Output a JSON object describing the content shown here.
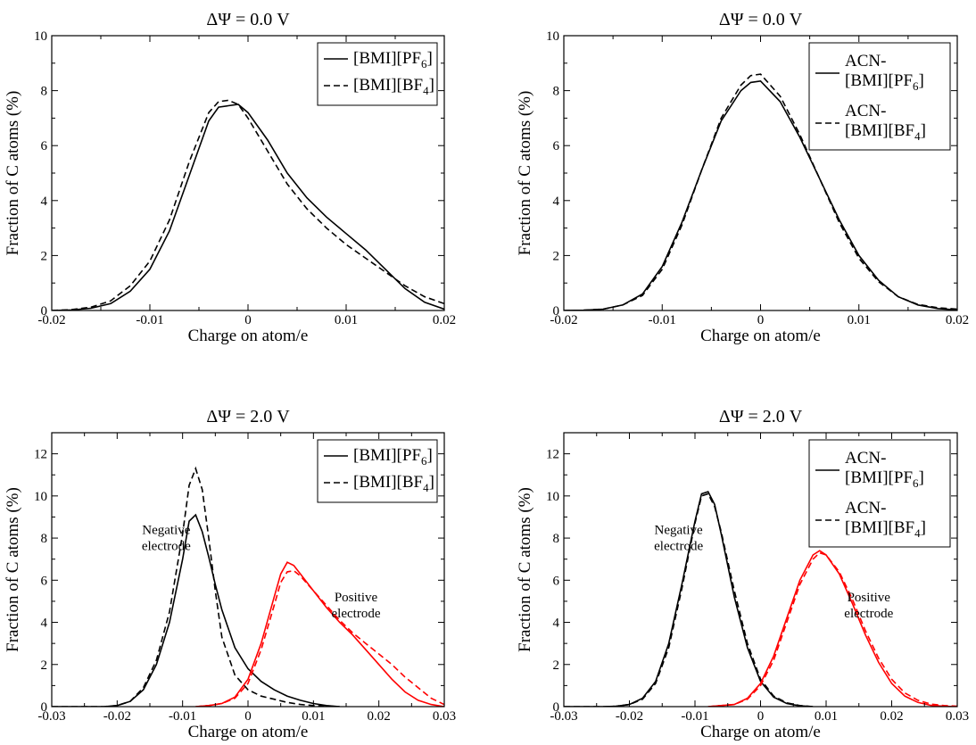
{
  "chart_data": [
    {
      "type": "line",
      "title": "ΔΨ = 0.0 V",
      "xlabel": "Charge on atom/e",
      "ylabel": "Fraction of C atoms (%)",
      "xlim": [
        -0.02,
        0.02
      ],
      "ylim": [
        0,
        10
      ],
      "xticks": [
        -0.02,
        -0.01,
        0,
        0.01,
        0.02
      ],
      "xtick_labels": [
        "-0.02",
        "-0.01",
        "0",
        "0.01",
        "0.02"
      ],
      "yticks": [
        0,
        2,
        4,
        6,
        8,
        10
      ],
      "ytick_labels": [
        "0",
        "2",
        "4",
        "6",
        "8",
        "10"
      ],
      "legend_position": "top-right",
      "series": [
        {
          "name": "[BMI][PF6]",
          "legend": [
            {
              "t": "[BMI][PF"
            },
            {
              "t": "6",
              "sub": true
            },
            {
              "t": "]"
            }
          ],
          "color": "#000000",
          "dash": "solid",
          "x": [
            -0.02,
            -0.018,
            -0.016,
            -0.014,
            -0.012,
            -0.01,
            -0.008,
            -0.006,
            -0.004,
            -0.003,
            -0.002,
            -0.001,
            0,
            0.002,
            0.004,
            0.006,
            0.008,
            0.01,
            0.012,
            0.014,
            0.016,
            0.018,
            0.02
          ],
          "y": [
            0,
            0.02,
            0.08,
            0.25,
            0.7,
            1.5,
            2.9,
            4.9,
            6.9,
            7.4,
            7.45,
            7.5,
            7.2,
            6.2,
            5.0,
            4.1,
            3.4,
            2.8,
            2.2,
            1.5,
            0.8,
            0.3,
            0.05
          ]
        },
        {
          "name": "[BMI][BF4]",
          "legend": [
            {
              "t": "[BMI][BF"
            },
            {
              "t": "4",
              "sub": true
            },
            {
              "t": "]"
            }
          ],
          "color": "#000000",
          "dash": "dashed",
          "x": [
            -0.02,
            -0.018,
            -0.016,
            -0.014,
            -0.012,
            -0.01,
            -0.008,
            -0.006,
            -0.004,
            -0.003,
            -0.002,
            -0.001,
            0,
            0.002,
            0.004,
            0.006,
            0.008,
            0.01,
            0.012,
            0.014,
            0.016,
            0.018,
            0.02
          ],
          "y": [
            0,
            0.03,
            0.12,
            0.35,
            0.9,
            1.8,
            3.3,
            5.4,
            7.2,
            7.6,
            7.65,
            7.5,
            7.0,
            5.8,
            4.6,
            3.7,
            3.0,
            2.4,
            1.9,
            1.4,
            0.9,
            0.5,
            0.25
          ]
        }
      ],
      "annotations": []
    },
    {
      "type": "line",
      "title": "ΔΨ = 0.0 V",
      "xlabel": "Charge on atom/e",
      "ylabel": "Fraction of C atoms (%)",
      "xlim": [
        -0.02,
        0.02
      ],
      "ylim": [
        0,
        10
      ],
      "xticks": [
        -0.02,
        -0.01,
        0,
        0.01,
        0.02
      ],
      "xtick_labels": [
        "-0.02",
        "-0.01",
        "0",
        "0.01",
        "0.02"
      ],
      "yticks": [
        0,
        2,
        4,
        6,
        8,
        10
      ],
      "ytick_labels": [
        "0",
        "2",
        "4",
        "6",
        "8",
        "10"
      ],
      "legend_position": "top-right",
      "series": [
        {
          "name": "ACN-[BMI][PF6]",
          "legend": [
            {
              "t": "ACN-"
            },
            {
              "t": "[BMI][PF",
              "newline": true
            },
            {
              "t": "6",
              "sub": true
            },
            {
              "t": "]"
            }
          ],
          "color": "#000000",
          "dash": "solid",
          "x": [
            -0.02,
            -0.018,
            -0.016,
            -0.014,
            -0.012,
            -0.01,
            -0.008,
            -0.006,
            -0.004,
            -0.002,
            -0.001,
            0,
            0.002,
            0.004,
            0.006,
            0.008,
            0.01,
            0.012,
            0.014,
            0.016,
            0.018,
            0.02
          ],
          "y": [
            0,
            0.01,
            0.05,
            0.2,
            0.6,
            1.6,
            3.2,
            5.1,
            6.9,
            8.0,
            8.3,
            8.35,
            7.6,
            6.3,
            4.8,
            3.3,
            2.0,
            1.1,
            0.5,
            0.2,
            0.07,
            0.02
          ]
        },
        {
          "name": "ACN-[BMI][BF4]",
          "legend": [
            {
              "t": "ACN-"
            },
            {
              "t": "[BMI][BF",
              "newline": true
            },
            {
              "t": "4",
              "sub": true
            },
            {
              "t": "]"
            }
          ],
          "color": "#000000",
          "dash": "dashed",
          "x": [
            -0.02,
            -0.018,
            -0.016,
            -0.014,
            -0.012,
            -0.01,
            -0.008,
            -0.006,
            -0.004,
            -0.002,
            -0.001,
            0,
            0.002,
            0.004,
            0.006,
            0.008,
            0.01,
            0.012,
            0.014,
            0.016,
            0.018,
            0.02
          ],
          "y": [
            0,
            0.01,
            0.05,
            0.2,
            0.55,
            1.5,
            3.1,
            5.1,
            7.0,
            8.2,
            8.55,
            8.6,
            7.8,
            6.4,
            4.8,
            3.2,
            1.9,
            1.05,
            0.5,
            0.22,
            0.1,
            0.05
          ]
        }
      ],
      "annotations": []
    },
    {
      "type": "line",
      "title": "ΔΨ = 2.0 V",
      "xlabel": "Charge on atom/e",
      "ylabel": "Fraction of C atoms (%)",
      "xlim": [
        -0.03,
        0.03
      ],
      "ylim": [
        0,
        13
      ],
      "xticks": [
        -0.03,
        -0.02,
        -0.01,
        0,
        0.01,
        0.02,
        0.03
      ],
      "xtick_labels": [
        "-0.03",
        "-0.02",
        "-0.01",
        "0",
        "0.01",
        "0.02",
        "0.03"
      ],
      "yticks": [
        0,
        2,
        4,
        6,
        8,
        10,
        12
      ],
      "ytick_labels": [
        "0",
        "2",
        "4",
        "6",
        "8",
        "10",
        "12"
      ],
      "legend_position": "top-right",
      "series": [
        {
          "name": "[BMI][PF6]",
          "legend": [
            {
              "t": "[BMI][PF"
            },
            {
              "t": "6",
              "sub": true
            },
            {
              "t": "]"
            }
          ],
          "color": "#000000",
          "dash": "solid",
          "x": [
            -0.03,
            -0.022,
            -0.02,
            -0.018,
            -0.016,
            -0.014,
            -0.012,
            -0.01,
            -0.009,
            -0.008,
            -0.007,
            -0.006,
            -0.005,
            -0.004,
            -0.002,
            0,
            0.002,
            0.004,
            0.006,
            0.008,
            0.01,
            0.012,
            0.014
          ],
          "y": [
            0,
            0,
            0.05,
            0.25,
            0.8,
            2.0,
            4.0,
            7.0,
            8.8,
            9.1,
            8.3,
            7.1,
            5.8,
            4.6,
            2.8,
            1.8,
            1.2,
            0.8,
            0.5,
            0.3,
            0.15,
            0.05,
            0
          ]
        },
        {
          "name": "[BMI][BF4]",
          "legend": [
            {
              "t": "[BMI][BF"
            },
            {
              "t": "4",
              "sub": true
            },
            {
              "t": "]"
            }
          ],
          "color": "#000000",
          "dash": "dashed",
          "x": [
            -0.03,
            -0.022,
            -0.02,
            -0.018,
            -0.016,
            -0.014,
            -0.012,
            -0.01,
            -0.009,
            -0.008,
            -0.007,
            -0.006,
            -0.005,
            -0.004,
            -0.002,
            0,
            0.002,
            0.004,
            0.006,
            0.008,
            0.01,
            0.012,
            0.014
          ],
          "y": [
            0,
            0,
            0.05,
            0.25,
            0.9,
            2.2,
            4.5,
            8.2,
            10.5,
            11.3,
            10.3,
            8.0,
            5.5,
            3.3,
            1.5,
            0.8,
            0.5,
            0.35,
            0.2,
            0.1,
            0.05,
            0.02,
            0
          ]
        },
        {
          "name": "[BMI][PF6] (positive electrode)",
          "color": "#ff0000",
          "dash": "solid",
          "x": [
            -0.008,
            -0.006,
            -0.004,
            -0.002,
            0,
            0.002,
            0.004,
            0.005,
            0.006,
            0.007,
            0.008,
            0.01,
            0.012,
            0.014,
            0.016,
            0.018,
            0.02,
            0.022,
            0.024,
            0.026,
            0.028,
            0.03
          ],
          "y": [
            0,
            0.05,
            0.15,
            0.45,
            1.3,
            3.0,
            5.2,
            6.3,
            6.85,
            6.7,
            6.3,
            5.5,
            4.7,
            4.0,
            3.4,
            2.7,
            2.0,
            1.3,
            0.7,
            0.3,
            0.1,
            0
          ]
        },
        {
          "name": "[BMI][BF4] (positive electrode)",
          "color": "#ff0000",
          "dash": "dashed",
          "x": [
            -0.008,
            -0.006,
            -0.004,
            -0.002,
            0,
            0.002,
            0.004,
            0.005,
            0.006,
            0.007,
            0.008,
            0.01,
            0.012,
            0.014,
            0.016,
            0.018,
            0.02,
            0.022,
            0.024,
            0.026,
            0.028,
            0.03
          ],
          "y": [
            0,
            0.05,
            0.15,
            0.4,
            1.1,
            2.7,
            4.8,
            5.9,
            6.4,
            6.45,
            6.2,
            5.5,
            4.8,
            4.1,
            3.5,
            3.0,
            2.5,
            2.0,
            1.4,
            0.9,
            0.4,
            0.1
          ]
        }
      ],
      "annotations": [
        {
          "lines": [
            "Negative",
            "electrode"
          ],
          "x": -0.0125,
          "y": 8.2
        },
        {
          "lines": [
            "Positive",
            "electrode"
          ],
          "x": 0.0165,
          "y": 5.0
        }
      ]
    },
    {
      "type": "line",
      "title": "ΔΨ = 2.0 V",
      "xlabel": "Charge on atom/e",
      "ylabel": "Fraction of C atoms (%)",
      "xlim": [
        -0.03,
        0.03
      ],
      "ylim": [
        0,
        13
      ],
      "xticks": [
        -0.03,
        -0.02,
        -0.01,
        0,
        0.01,
        0.02,
        0.03
      ],
      "xtick_labels": [
        "-0.03",
        "-0.02",
        "-0.01",
        "0",
        "0.01",
        "0.02",
        "0.03"
      ],
      "yticks": [
        0,
        2,
        4,
        6,
        8,
        10,
        12
      ],
      "ytick_labels": [
        "0",
        "2",
        "4",
        "6",
        "8",
        "10",
        "12"
      ],
      "legend_position": "top-right",
      "series": [
        {
          "name": "ACN-[BMI][PF6]",
          "legend": [
            {
              "t": "ACN-"
            },
            {
              "t": "[BMI][PF",
              "newline": true
            },
            {
              "t": "6",
              "sub": true
            },
            {
              "t": "]"
            }
          ],
          "color": "#000000",
          "dash": "solid",
          "x": [
            -0.03,
            -0.024,
            -0.022,
            -0.02,
            -0.018,
            -0.016,
            -0.014,
            -0.012,
            -0.01,
            -0.009,
            -0.008,
            -0.007,
            -0.006,
            -0.004,
            -0.002,
            0,
            0.002,
            0.004,
            0.006,
            0.008
          ],
          "y": [
            0,
            0,
            0.02,
            0.1,
            0.4,
            1.2,
            3.0,
            5.8,
            8.8,
            10.1,
            10.2,
            9.6,
            8.2,
            5.2,
            2.8,
            1.2,
            0.45,
            0.15,
            0.04,
            0
          ]
        },
        {
          "name": "ACN-[BMI][BF4]",
          "legend": [
            {
              "t": "ACN-"
            },
            {
              "t": "[BMI][BF",
              "newline": true
            },
            {
              "t": "4",
              "sub": true
            },
            {
              "t": "]"
            }
          ],
          "color": "#000000",
          "dash": "dashed",
          "x": [
            -0.03,
            -0.024,
            -0.022,
            -0.02,
            -0.018,
            -0.016,
            -0.014,
            -0.012,
            -0.01,
            -0.009,
            -0.008,
            -0.007,
            -0.006,
            -0.004,
            -0.002,
            0,
            0.002,
            0.004,
            0.006,
            0.008
          ],
          "y": [
            0,
            0,
            0.02,
            0.1,
            0.35,
            1.1,
            2.8,
            5.6,
            8.7,
            10.0,
            10.1,
            9.5,
            8.3,
            5.5,
            3.0,
            1.3,
            0.5,
            0.18,
            0.05,
            0
          ]
        },
        {
          "name": "ACN-[BMI][PF6] (positive electrode)",
          "color": "#ff0000",
          "dash": "solid",
          "x": [
            -0.008,
            -0.004,
            -0.002,
            0,
            0.002,
            0.004,
            0.006,
            0.008,
            0.009,
            0.01,
            0.012,
            0.014,
            0.016,
            0.018,
            0.02,
            0.022,
            0.024,
            0.026,
            0.028,
            0.03
          ],
          "y": [
            0,
            0.1,
            0.4,
            1.1,
            2.4,
            4.2,
            6.0,
            7.2,
            7.4,
            7.2,
            6.3,
            4.9,
            3.4,
            2.1,
            1.1,
            0.5,
            0.2,
            0.06,
            0.02,
            0
          ]
        },
        {
          "name": "ACN-[BMI][BF4] (positive electrode)",
          "color": "#ff0000",
          "dash": "dashed",
          "x": [
            -0.008,
            -0.004,
            -0.002,
            0,
            0.002,
            0.004,
            0.006,
            0.008,
            0.009,
            0.01,
            0.012,
            0.014,
            0.016,
            0.018,
            0.02,
            0.022,
            0.024,
            0.026,
            0.028,
            0.03
          ],
          "y": [
            0,
            0.1,
            0.35,
            1.0,
            2.2,
            4.0,
            5.8,
            7.0,
            7.3,
            7.2,
            6.4,
            5.1,
            3.6,
            2.3,
            1.3,
            0.65,
            0.3,
            0.12,
            0.05,
            0.02
          ]
        }
      ],
      "annotations": [
        {
          "lines": [
            "Negative",
            "electrode"
          ],
          "x": -0.0125,
          "y": 8.2
        },
        {
          "lines": [
            "Positive",
            "electrode"
          ],
          "x": 0.0165,
          "y": 5.0
        }
      ]
    }
  ]
}
